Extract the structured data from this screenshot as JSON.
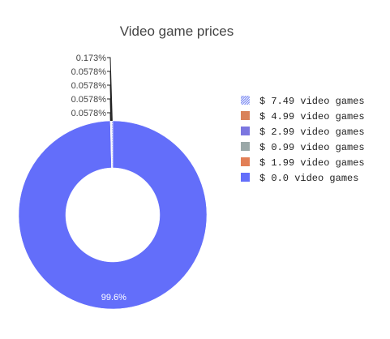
{
  "chart_data": {
    "type": "pie",
    "title": "Video game prices",
    "hole": true,
    "legend_position": "right",
    "slices": [
      {
        "label": "$ 0.0 video games",
        "value": 99.6,
        "value_label": "99.6%",
        "color": "#636efa"
      },
      {
        "label": "$ 1.99 video games",
        "value": 0.0578,
        "value_label": "0.0578%",
        "color": "#e27f56"
      },
      {
        "label": "$ 0.99 video games",
        "value": 0.0578,
        "value_label": "0.0578%",
        "color": "#9aa8a8"
      },
      {
        "label": "$ 2.99 video games",
        "value": 0.0578,
        "value_label": "0.0578%",
        "color": "#7b76e0"
      },
      {
        "label": "$ 4.99 video games",
        "value": 0.0578,
        "value_label": "0.0578%",
        "color": "#d9825a"
      },
      {
        "label": "$ 7.49 video games",
        "value": 0.173,
        "value_label": "0.173%",
        "color": "#8e9bf5",
        "pattern": true
      }
    ],
    "legend_order": [
      "$ 7.49 video games",
      "$ 4.99 video games",
      "$ 2.99 video games",
      "$ 0.99 video games",
      "$ 1.99 video games",
      "$ 0.0 video games"
    ]
  }
}
